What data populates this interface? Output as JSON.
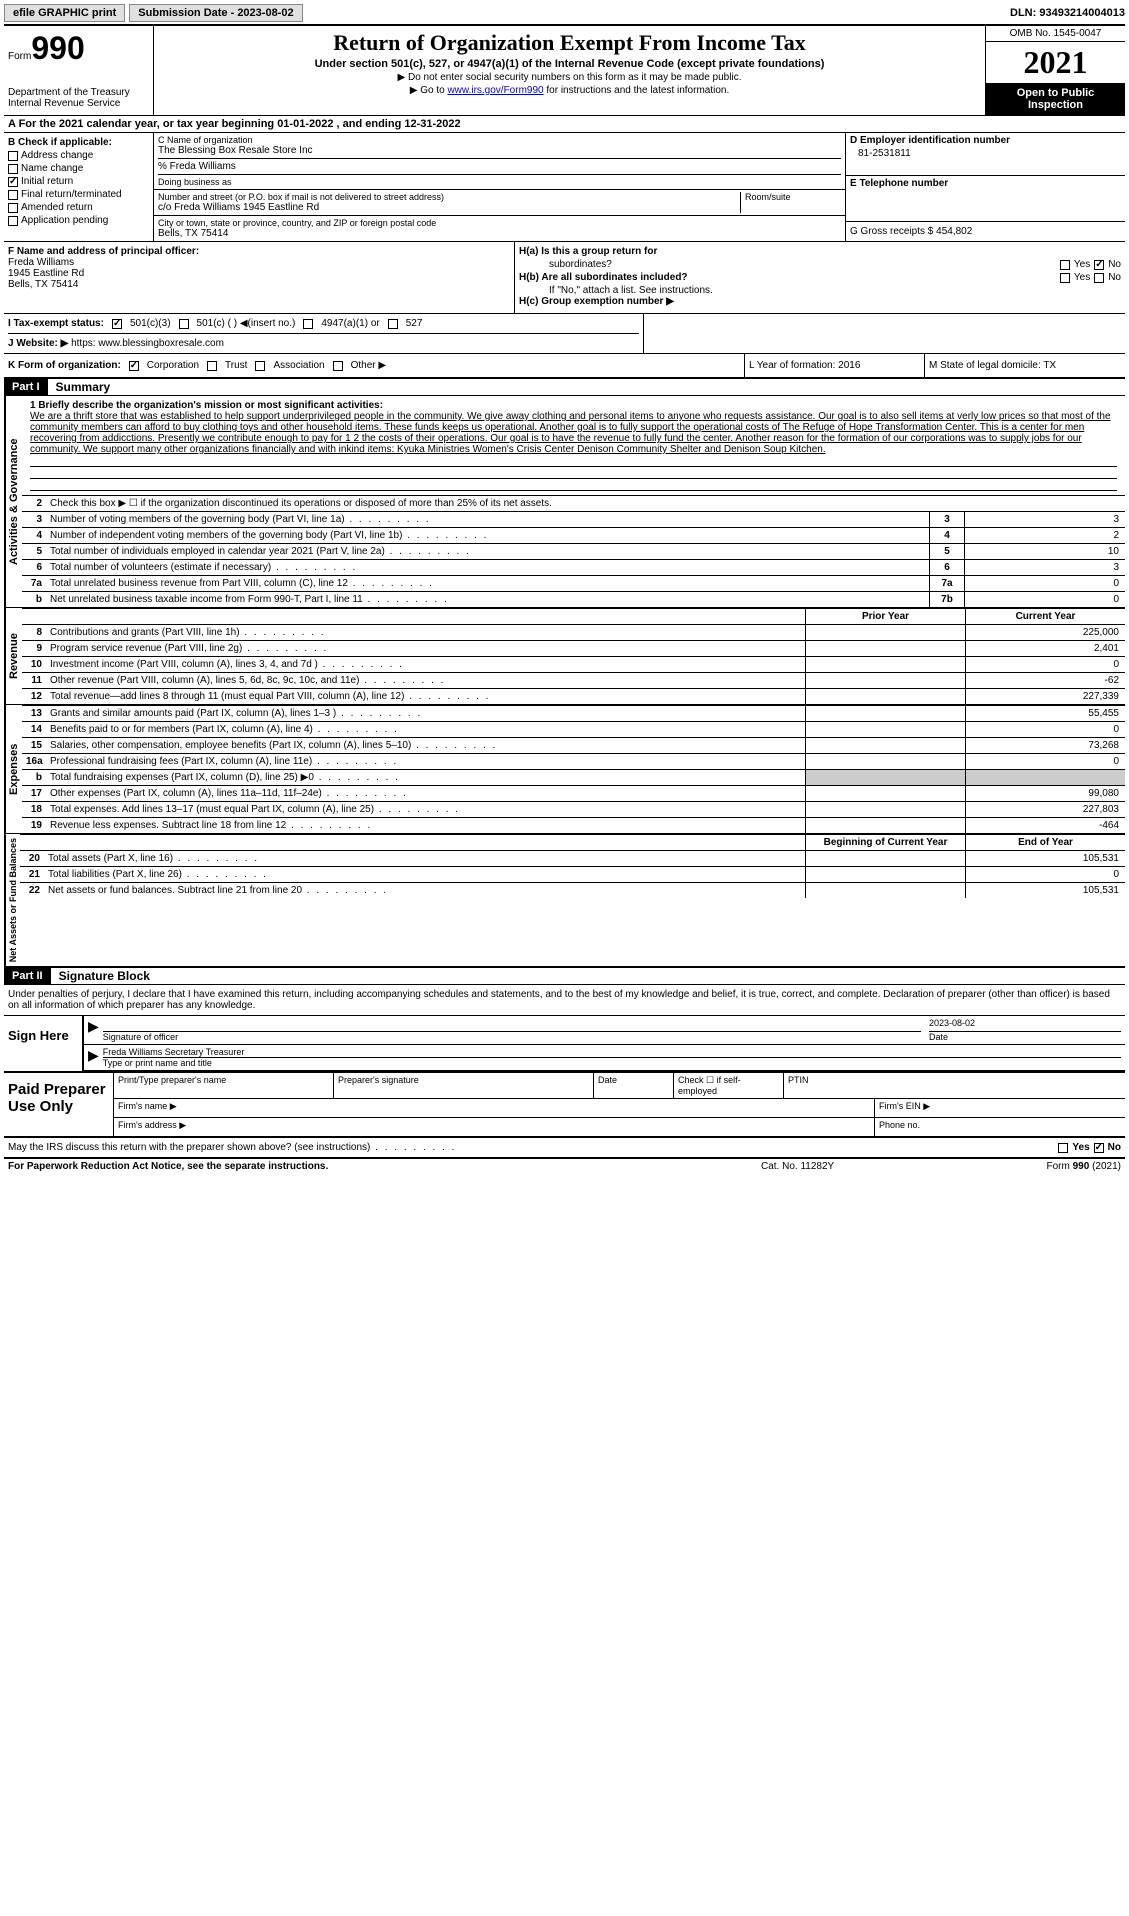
{
  "topbar": {
    "efile": "efile GRAPHIC print",
    "submission_label": "Submission Date - 2023-08-02",
    "dln": "DLN: 93493214004013"
  },
  "header": {
    "form_prefix": "Form",
    "form_num": "990",
    "dept": "Department of the Treasury\nInternal Revenue Service",
    "title": "Return of Organization Exempt From Income Tax",
    "subtitle": "Under section 501(c), 527, or 4947(a)(1) of the Internal Revenue Code (except private foundations)",
    "note1": "▶ Do not enter social security numbers on this form as it may be made public.",
    "note2_pre": "▶ Go to ",
    "note2_link": "www.irs.gov/Form990",
    "note2_post": " for instructions and the latest information.",
    "omb": "OMB No. 1545-0047",
    "year": "2021",
    "open": "Open to Public Inspection"
  },
  "period": "A For the 2021 calendar year, or tax year beginning 01-01-2022    , and ending 12-31-2022",
  "section_b": {
    "label": "B Check if applicable:",
    "addr_change": "Address change",
    "name_change": "Name change",
    "initial": "Initial return",
    "final": "Final return/terminated",
    "amended": "Amended return",
    "app_pending": "Application pending"
  },
  "section_c": {
    "name_label": "C Name of organization",
    "name_val": "The Blessing Box Resale Store Inc",
    "care_of": "% Freda Williams",
    "dba_label": "Doing business as",
    "addr_label": "Number and street (or P.O. box if mail is not delivered to street address)",
    "addr_val": "c/o Freda Williams 1945 Eastline Rd",
    "suite_label": "Room/suite",
    "city_label": "City or town, state or province, country, and ZIP or foreign postal code",
    "city_val": "Bells, TX  75414"
  },
  "section_d": {
    "ein_label": "D Employer identification number",
    "ein_val": "81-2531811",
    "phone_label": "E Telephone number",
    "receipts_label": "G Gross receipts $ 454,802"
  },
  "section_f": {
    "label": "F  Name and address of principal officer:",
    "name": "Freda Williams",
    "addr1": "1945 Eastline Rd",
    "addr2": "Bells, TX  75414"
  },
  "section_h": {
    "ha": "H(a)  Is this a group return for",
    "ha2": "subordinates?",
    "hb": "H(b)  Are all subordinates included?",
    "hb_note": "If \"No,\" attach a list. See instructions.",
    "hc": "H(c)  Group exemption number ▶"
  },
  "section_i": {
    "label": "I    Tax-exempt status:",
    "opt1": "501(c)(3)",
    "opt2": "501(c) (  ) ◀(insert no.)",
    "opt3": "4947(a)(1) or",
    "opt4": "527"
  },
  "section_j": {
    "label": "J   Website: ▶",
    "val": "https: www.blessingboxresale.com"
  },
  "section_k": {
    "label": "K Form of organization:",
    "corp": "Corporation",
    "trust": "Trust",
    "assoc": "Association",
    "other": "Other ▶"
  },
  "section_l": {
    "label": "L Year of formation: 2016"
  },
  "section_m": {
    "label": "M State of legal domicile: TX"
  },
  "part1": {
    "hdr": "Part I",
    "title": "Summary",
    "side_ag": "Activities & Governance",
    "side_rev": "Revenue",
    "side_exp": "Expenses",
    "side_net": "Net Assets or Fund Balances",
    "line1_label": "1  Briefly describe the organization's mission or most significant activities:",
    "line1_text": "We are a thrift store that was established to help support underprivileged people in the community. We give away clothing and personal items to anyone who requests assistance. Our goal is to also sell items at verly low prices so that most of the community members can afford to buy clothing toys and other household items. These funds keeps us operational. Another goal is to fully support the operational costs of The Refuge of Hope Transformation Center. This is a center for men recovering from addicctions. Presently we contribute enough to pay for 1 2 the costs of their operations. Our goal is to have the revenue to fully fund the center. Another reason for the formation of our corporations was to supply jobs for our community. We support many other organizations financially and with inkind items: Kyuka Ministries Women's Crisis Center Denison Community Shelter and Denison Soup Kitchen.",
    "line2": "Check this box ▶ ☐ if the organization discontinued its operations or disposed of more than 25% of its net assets.",
    "rows_ag": [
      {
        "n": "3",
        "desc": "Number of voting members of the governing body (Part VI, line 1a)",
        "box": "3",
        "val": "3"
      },
      {
        "n": "4",
        "desc": "Number of independent voting members of the governing body (Part VI, line 1b)",
        "box": "4",
        "val": "2"
      },
      {
        "n": "5",
        "desc": "Total number of individuals employed in calendar year 2021 (Part V, line 2a)",
        "box": "5",
        "val": "10"
      },
      {
        "n": "6",
        "desc": "Total number of volunteers (estimate if necessary)",
        "box": "6",
        "val": "3"
      },
      {
        "n": "7a",
        "desc": "Total unrelated business revenue from Part VIII, column (C), line 12",
        "box": "7a",
        "val": "0"
      },
      {
        "n": "b",
        "desc": "Net unrelated business taxable income from Form 990-T, Part I, line 11",
        "box": "7b",
        "val": "0"
      }
    ],
    "prior_hdr": "Prior Year",
    "curr_hdr": "Current Year",
    "rows_rev": [
      {
        "n": "8",
        "desc": "Contributions and grants (Part VIII, line 1h)",
        "prior": "",
        "curr": "225,000"
      },
      {
        "n": "9",
        "desc": "Program service revenue (Part VIII, line 2g)",
        "prior": "",
        "curr": "2,401"
      },
      {
        "n": "10",
        "desc": "Investment income (Part VIII, column (A), lines 3, 4, and 7d )",
        "prior": "",
        "curr": "0"
      },
      {
        "n": "11",
        "desc": "Other revenue (Part VIII, column (A), lines 5, 6d, 8c, 9c, 10c, and 11e)",
        "prior": "",
        "curr": "-62"
      },
      {
        "n": "12",
        "desc": "Total revenue—add lines 8 through 11 (must equal Part VIII, column (A), line 12)",
        "prior": "",
        "curr": "227,339"
      }
    ],
    "rows_exp": [
      {
        "n": "13",
        "desc": "Grants and similar amounts paid (Part IX, column (A), lines 1–3 )",
        "prior": "",
        "curr": "55,455"
      },
      {
        "n": "14",
        "desc": "Benefits paid to or for members (Part IX, column (A), line 4)",
        "prior": "",
        "curr": "0"
      },
      {
        "n": "15",
        "desc": "Salaries, other compensation, employee benefits (Part IX, column (A), lines 5–10)",
        "prior": "",
        "curr": "73,268"
      },
      {
        "n": "16a",
        "desc": "Professional fundraising fees (Part IX, column (A), line 11e)",
        "prior": "",
        "curr": "0"
      },
      {
        "n": "b",
        "desc": "Total fundraising expenses (Part IX, column (D), line 25) ▶0",
        "prior": "shaded",
        "curr": "shaded"
      },
      {
        "n": "17",
        "desc": "Other expenses (Part IX, column (A), lines 11a–11d, 11f–24e)",
        "prior": "",
        "curr": "99,080"
      },
      {
        "n": "18",
        "desc": "Total expenses. Add lines 13–17 (must equal Part IX, column (A), line 25)",
        "prior": "",
        "curr": "227,803"
      },
      {
        "n": "19",
        "desc": "Revenue less expenses. Subtract line 18 from line 12",
        "prior": "",
        "curr": "-464"
      }
    ],
    "begin_hdr": "Beginning of Current Year",
    "end_hdr": "End of Year",
    "rows_net": [
      {
        "n": "20",
        "desc": "Total assets (Part X, line 16)",
        "prior": "",
        "curr": "105,531"
      },
      {
        "n": "21",
        "desc": "Total liabilities (Part X, line 26)",
        "prior": "",
        "curr": "0"
      },
      {
        "n": "22",
        "desc": "Net assets or fund balances. Subtract line 21 from line 20",
        "prior": "",
        "curr": "105,531"
      }
    ]
  },
  "part2": {
    "hdr": "Part II",
    "title": "Signature Block",
    "decl": "Under penalties of perjury, I declare that I have examined this return, including accompanying schedules and statements, and to the best of my knowledge and belief, it is true, correct, and complete. Declaration of preparer (other than officer) is based on all information of which preparer has any knowledge.",
    "sign_here": "Sign Here",
    "sig_officer": "Signature of officer",
    "sig_date": "2023-08-02",
    "sig_date_label": "Date",
    "sig_name": "Freda Williams Secretary Treasurer",
    "sig_name_label": "Type or print name and title",
    "paid_prep": "Paid Preparer Use Only",
    "prep_name": "Print/Type preparer's name",
    "prep_sig": "Preparer's signature",
    "prep_date": "Date",
    "prep_check": "Check ☐ if self-employed",
    "prep_ptin": "PTIN",
    "firm_name": "Firm's name    ▶",
    "firm_ein": "Firm's EIN ▶",
    "firm_addr": "Firm's address ▶",
    "firm_phone": "Phone no.",
    "discuss": "May the IRS discuss this return with the preparer shown above? (see instructions)"
  },
  "footer": {
    "paperwork": "For Paperwork Reduction Act Notice, see the separate instructions.",
    "cat": "Cat. No. 11282Y",
    "form": "Form 990 (2021)"
  },
  "yes": "Yes",
  "no": "No"
}
